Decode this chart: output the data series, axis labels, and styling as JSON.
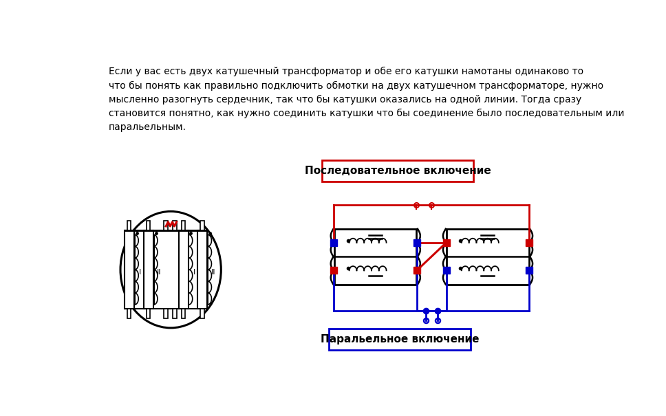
{
  "title_text": "Если у вас есть двух катушечный трансформатор и обе его катушки намотаны одинаково то\nчто бы понять как правильно подключить обмотки на двух катушечном трансформаторе, нужно\nмысленно разогнуть сердечник, так что бы катушки оказались на одной линии. Тогда сразу\nстановится понятно, как нужно соединить катушки что бы соединение было последовательным или\nпаральельным.",
  "label_series": "Последовательное включение",
  "label_parallel": "Паральельное включение",
  "bg_color": "#ffffff",
  "text_color": "#000000",
  "red_color": "#cc0000",
  "blue_color": "#0000cc",
  "title_fontsize": 10,
  "label_fontsize": 11
}
